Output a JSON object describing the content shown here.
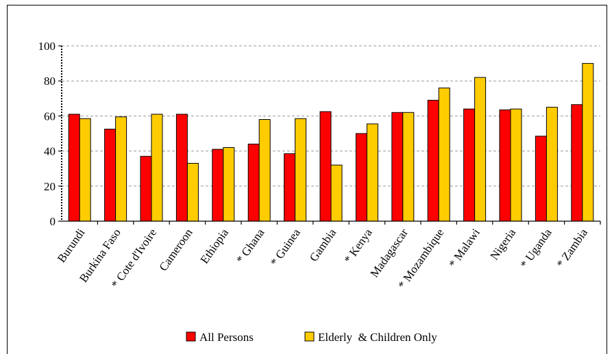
{
  "chart_data": {
    "type": "bar",
    "title": "",
    "xlabel": "",
    "ylabel": "",
    "ylim": [
      0,
      100
    ],
    "yticks": [
      0,
      20,
      40,
      60,
      80,
      100
    ],
    "grid": true,
    "legend_position": "bottom",
    "categories": [
      "Burundi",
      "Burkina Faso",
      "* Cote d'Ivoire",
      "Cameroon",
      "Ethiopia",
      "* Ghana",
      "* Guinea",
      "Gambia",
      "* Kenya",
      "Madagascar",
      "* Mozambique",
      "* Malawi",
      "Nigeria",
      "* Uganda",
      "* Zambia"
    ],
    "series": [
      {
        "name": "All Persons",
        "color": "#ff0000",
        "values": [
          61,
          52.5,
          37,
          61,
          41,
          44,
          38.5,
          62.5,
          50,
          62,
          69,
          64,
          63.5,
          48.5,
          66.5
        ]
      },
      {
        "name": "Elderly  & Children Only",
        "color": "#ffcc00",
        "values": [
          58.5,
          59.5,
          61,
          33,
          42,
          58,
          58.5,
          32,
          55.5,
          62,
          76,
          82,
          64,
          65,
          90
        ]
      }
    ]
  }
}
